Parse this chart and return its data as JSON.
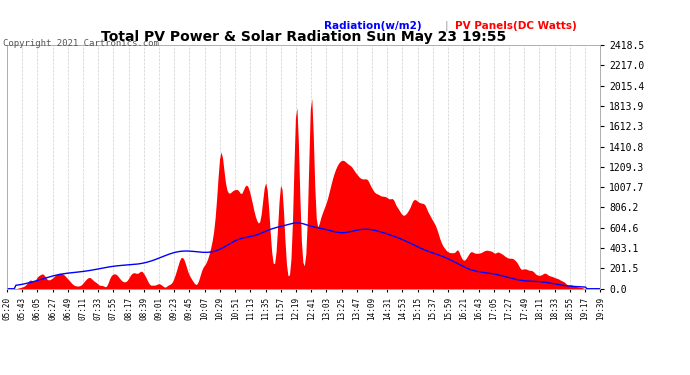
{
  "title": "Total PV Power & Solar Radiation Sun May 23 19:55",
  "copyright": "Copyright 2021 Cartronics.com",
  "legend_radiation": "Radiation(w/m2)",
  "legend_pv": "PV Panels(DC Watts)",
  "y_max": 2418.5,
  "y_ticks": [
    0.0,
    201.5,
    403.1,
    604.6,
    806.2,
    1007.7,
    1209.3,
    1410.8,
    1612.3,
    1813.9,
    2015.4,
    2217.0,
    2418.5
  ],
  "x_labels": [
    "05:20",
    "05:43",
    "06:05",
    "06:27",
    "06:49",
    "07:11",
    "07:33",
    "07:55",
    "08:17",
    "08:39",
    "09:01",
    "09:23",
    "09:45",
    "10:07",
    "10:29",
    "10:51",
    "11:13",
    "11:35",
    "11:57",
    "12:19",
    "12:41",
    "13:03",
    "13:25",
    "13:47",
    "14:09",
    "14:31",
    "14:53",
    "15:15",
    "15:37",
    "15:59",
    "16:21",
    "16:43",
    "17:05",
    "17:27",
    "17:49",
    "18:11",
    "18:33",
    "18:55",
    "19:17",
    "19:39"
  ],
  "bg_color": "#ffffff",
  "grid_color": "#cccccc",
  "pv_fill_color": "#ff0000",
  "radiation_line_color": "#0000ff",
  "title_color": "#000000",
  "copyright_color": "#555555",
  "radiation_label_color": "#0000ff",
  "pv_label_color": "#ff0000",
  "y_tick_color": "#000000",
  "x_tick_color": "#000000",
  "n_points": 400
}
